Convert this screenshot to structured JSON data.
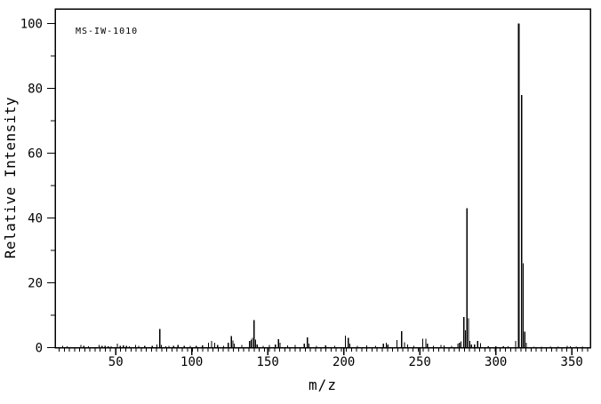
{
  "page": {
    "background": "#ffffff",
    "foreground": "#000000"
  },
  "chart_data": {
    "type": "bar",
    "variant": "mass-spectrum",
    "annotation": "MS-IW-1010",
    "xlabel": "m/z",
    "ylabel": "Relative Intensity",
    "xlim": [
      10,
      362
    ],
    "ylim": [
      0,
      104.5
    ],
    "x_major_ticks": [
      50,
      100,
      150,
      200,
      250,
      300,
      350
    ],
    "y_major_ticks": [
      0,
      20,
      40,
      60,
      80,
      100
    ],
    "y_minor_ticks": [
      10,
      30,
      50,
      70,
      90
    ],
    "grid": false,
    "legend": false,
    "line_color": "#000000",
    "base_peak": {
      "mz": 315,
      "intensity": 100
    },
    "peaks": [
      [
        15,
        0.6
      ],
      [
        18,
        0.4
      ],
      [
        27,
        0.8
      ],
      [
        29,
        0.6
      ],
      [
        32,
        0.4
      ],
      [
        39,
        0.8
      ],
      [
        41,
        0.6
      ],
      [
        43,
        0.5
      ],
      [
        45,
        0.4
      ],
      [
        47,
        0.4
      ],
      [
        51,
        1.2
      ],
      [
        53,
        0.5
      ],
      [
        55,
        0.7
      ],
      [
        57,
        0.5
      ],
      [
        59,
        0.4
      ],
      [
        63,
        0.8
      ],
      [
        65,
        0.6
      ],
      [
        69,
        0.5
      ],
      [
        74,
        0.5
      ],
      [
        77,
        1.0
      ],
      [
        79,
        5.8
      ],
      [
        80,
        0.8
      ],
      [
        83,
        0.4
      ],
      [
        85,
        0.5
      ],
      [
        88,
        0.5
      ],
      [
        91,
        0.8
      ],
      [
        95,
        0.6
      ],
      [
        99,
        0.5
      ],
      [
        103,
        0.6
      ],
      [
        107,
        0.7
      ],
      [
        111,
        1.5
      ],
      [
        113,
        2.0
      ],
      [
        115,
        1.5
      ],
      [
        117,
        0.8
      ],
      [
        121,
        0.5
      ],
      [
        124,
        1.5
      ],
      [
        126,
        3.5
      ],
      [
        127,
        2.2
      ],
      [
        128,
        1.2
      ],
      [
        133,
        0.8
      ],
      [
        138,
        2.0
      ],
      [
        139,
        2.5
      ],
      [
        140,
        3.0
      ],
      [
        141,
        8.5
      ],
      [
        142,
        2.5
      ],
      [
        143,
        1.0
      ],
      [
        147,
        0.6
      ],
      [
        151,
        0.8
      ],
      [
        155,
        1.0
      ],
      [
        157,
        2.6
      ],
      [
        158,
        1.5
      ],
      [
        163,
        0.7
      ],
      [
        168,
        0.8
      ],
      [
        174,
        1.3
      ],
      [
        176,
        3.2
      ],
      [
        177,
        1.2
      ],
      [
        182,
        0.6
      ],
      [
        188,
        0.7
      ],
      [
        194,
        0.6
      ],
      [
        201,
        3.7
      ],
      [
        203,
        3.0
      ],
      [
        204,
        1.2
      ],
      [
        209,
        0.5
      ],
      [
        215,
        0.7
      ],
      [
        221,
        0.6
      ],
      [
        226,
        1.3
      ],
      [
        228,
        1.5
      ],
      [
        229,
        1.0
      ],
      [
        235,
        2.3
      ],
      [
        238,
        5.1
      ],
      [
        240,
        1.7
      ],
      [
        242,
        1.0
      ],
      [
        246,
        0.6
      ],
      [
        252,
        2.8
      ],
      [
        254,
        2.8
      ],
      [
        255,
        1.2
      ],
      [
        259,
        0.5
      ],
      [
        264,
        0.8
      ],
      [
        266,
        0.7
      ],
      [
        271,
        0.6
      ],
      [
        275,
        1.2
      ],
      [
        276,
        1.5
      ],
      [
        277,
        1.9
      ],
      [
        279,
        9.5
      ],
      [
        280,
        5.3
      ],
      [
        281,
        43
      ],
      [
        282,
        9.0
      ],
      [
        283,
        2.0
      ],
      [
        284,
        1.0
      ],
      [
        286,
        1.0
      ],
      [
        288,
        2.1
      ],
      [
        290,
        1.4
      ],
      [
        295,
        0.4
      ],
      [
        300,
        0.4
      ],
      [
        305,
        0.4
      ],
      [
        308,
        0.4
      ],
      [
        313,
        2.0
      ],
      [
        315,
        100
      ],
      [
        317,
        78
      ],
      [
        318,
        26
      ],
      [
        319,
        5
      ],
      [
        320,
        1.5
      ],
      [
        325,
        0.3
      ],
      [
        330,
        0.3
      ],
      [
        336,
        0.3
      ],
      [
        341,
        0.3
      ],
      [
        347,
        0.6
      ],
      [
        349,
        0.4
      ],
      [
        353,
        0.3
      ],
      [
        357,
        0.3
      ]
    ]
  }
}
